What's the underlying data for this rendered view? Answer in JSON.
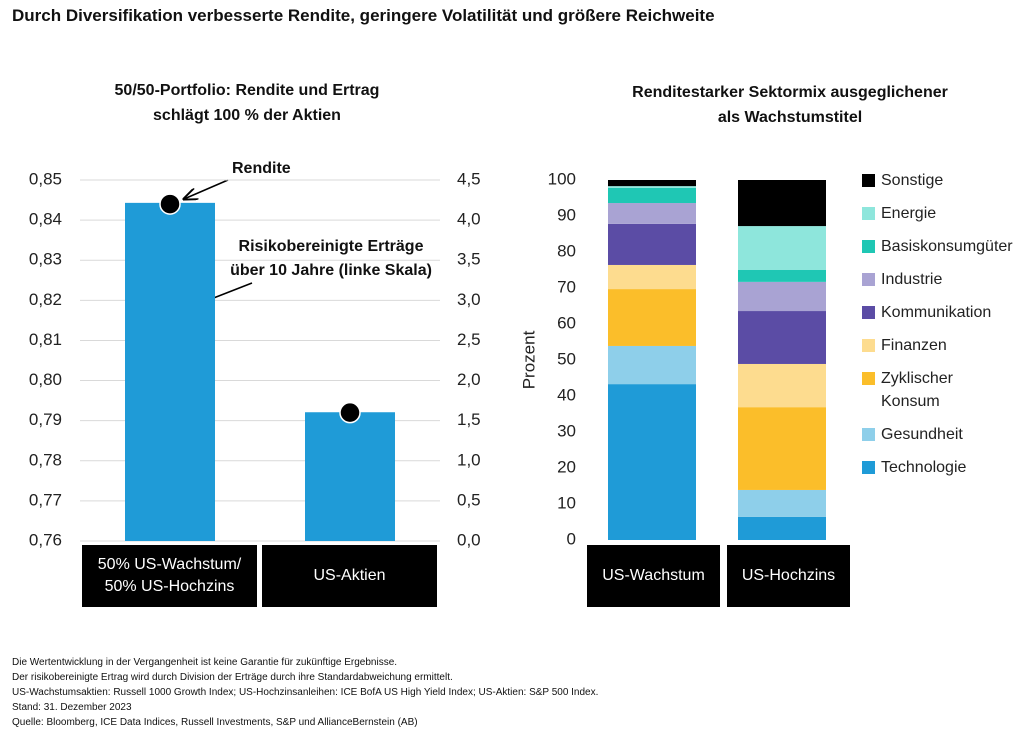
{
  "title": "Durch Diversifikation verbesserte Rendite, geringere Volatilität und größere Reichweite",
  "chart_data": [
    {
      "type": "bar",
      "title": "50/50-Portfolio: Rendite und Ertrag\nschlägt 100 % der Aktien",
      "categories": [
        "50% US-Wachstum/\n50% US-Hochzins",
        "US-Aktien"
      ],
      "series": [
        {
          "name": "Risikobereinigte Erträge\nüber 10 Jahre (linke Skala)",
          "color": "#1f9bd7",
          "values": [
            0.8443,
            0.7921
          ]
        },
        {
          "name": "Rendite",
          "color": "#000000",
          "axis": "y2",
          "values": [
            4.2,
            1.6
          ]
        }
      ],
      "ylim": [
        0.76,
        0.85
      ],
      "yticks": [
        {
          "value": 0.76,
          "label": "0,76"
        },
        {
          "value": 0.77,
          "label": "0,77"
        },
        {
          "value": 0.78,
          "label": "0,78"
        },
        {
          "value": 0.79,
          "label": "0,79"
        },
        {
          "value": 0.8,
          "label": "0,80"
        },
        {
          "value": 0.81,
          "label": "0,81"
        },
        {
          "value": 0.82,
          "label": "0,82"
        },
        {
          "value": 0.83,
          "label": "0,83"
        },
        {
          "value": 0.84,
          "label": "0,84"
        },
        {
          "value": 0.85,
          "label": "0,85"
        }
      ],
      "y2lim": [
        0,
        4.5
      ],
      "y2ticks": [
        {
          "value": 0,
          "label": "0,0"
        },
        {
          "value": 0.5,
          "label": "0,5"
        },
        {
          "value": 1,
          "label": "1,0"
        },
        {
          "value": 1.5,
          "label": "1,5"
        },
        {
          "value": 2,
          "label": "2,0"
        },
        {
          "value": 2.5,
          "label": "2,5"
        },
        {
          "value": 3,
          "label": "3,0"
        },
        {
          "value": 3.5,
          "label": "3,5"
        },
        {
          "value": 4,
          "label": "4,0"
        },
        {
          "value": 4.5,
          "label": "4,5"
        }
      ],
      "grid": true
    },
    {
      "type": "stacked_bar",
      "title": "Renditestarker Sektormix ausgeglichener\nals Wachstumstitel",
      "y_label": "Prozent",
      "categories": [
        "US-Wachstum",
        "US-Hochzins"
      ],
      "series": [
        {
          "name": "Technologie",
          "color": "#1f9bd7",
          "values": [
            43.3,
            6.4
          ]
        },
        {
          "name": "Gesundheit",
          "color": "#8ecfea",
          "values": [
            10.6,
            7.5
          ]
        },
        {
          "name": "Zyklischer\nKonsum",
          "color": "#fbbe2a",
          "values": [
            15.8,
            23.0
          ]
        },
        {
          "name": "Finanzen",
          "color": "#fddc8f",
          "values": [
            6.7,
            12.0
          ]
        },
        {
          "name": "Kommunikation",
          "color": "#5b4ca5",
          "values": [
            11.4,
            14.7
          ]
        },
        {
          "name": "Industrie",
          "color": "#a9a3d3",
          "values": [
            5.8,
            8.1
          ]
        },
        {
          "name": "Basiskonsumgüter",
          "color": "#1fc7b4",
          "values": [
            4.2,
            3.3
          ]
        },
        {
          "name": "Energie",
          "color": "#8ee6dc",
          "values": [
            0.5,
            12.2
          ]
        },
        {
          "name": "Sonstige",
          "color": "#000000",
          "values": [
            1.7,
            12.8
          ]
        }
      ],
      "ylim": [
        0,
        100
      ],
      "yticks": [
        0,
        10,
        20,
        30,
        40,
        50,
        60,
        70,
        80,
        90,
        100
      ],
      "grid": false
    }
  ],
  "notes": [
    "Die Wertentwicklung in der Vergangenheit ist keine Garantie für zukünftige Ergebnisse.",
    "Der risikobereinigte Ertrag wird durch Division der Erträge durch ihre Standardabweichung ermittelt.",
    "US-Wachstumsaktien: Russell 1000 Growth Index; US-Hochzinsanleihen: ICE BofA US High Yield Index; US-Aktien: S&P 500 Index.",
    "Stand: 31. Dezember 2023",
    "Quelle: Bloomberg, ICE Data Indices, Russell Investments, S&P und AllianceBernstein (AB)"
  ]
}
